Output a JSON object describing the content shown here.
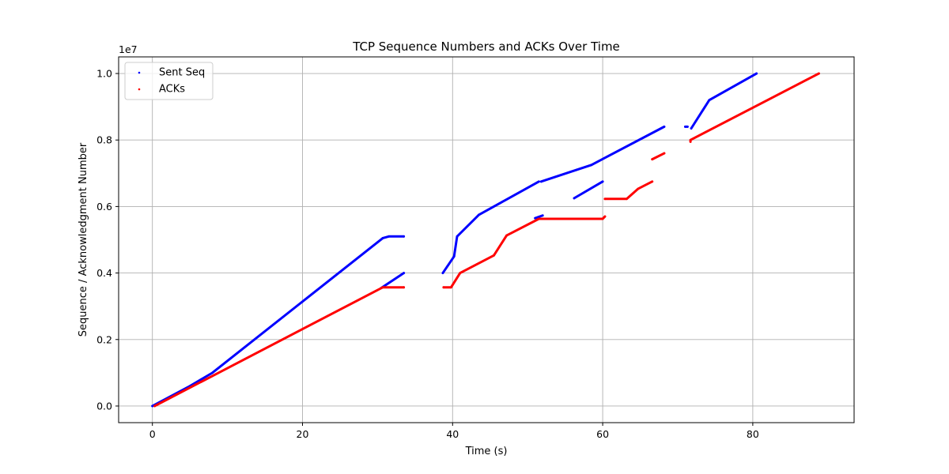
{
  "chart_data": {
    "type": "scatter",
    "title": "TCP Sequence Numbers and ACKs Over Time",
    "xlabel": "Time (s)",
    "ylabel": "Sequence / Acknowledgment Number",
    "offset_text": "1e7",
    "xlim": [
      -4.5,
      93.5
    ],
    "ylim": [
      -0.05,
      1.05
    ],
    "x_ticks": [
      0,
      20,
      40,
      60,
      80
    ],
    "y_ticks": [
      0.0,
      0.2,
      0.4,
      0.6,
      0.8,
      1.0
    ],
    "x_tick_labels": [
      "0",
      "20",
      "40",
      "60",
      "80"
    ],
    "y_tick_labels": [
      "0.0",
      "0.2",
      "0.4",
      "0.6",
      "0.8",
      "1.0"
    ],
    "grid": true,
    "legend_position": "top-left",
    "series": [
      {
        "name": "Sent Seq",
        "color": "#0000ff",
        "segments": [
          [
            [
              0,
              0.0
            ],
            [
              5,
              0.06
            ],
            [
              8,
              0.1
            ],
            [
              30.7,
              0.505
            ],
            [
              31.5,
              0.51
            ],
            [
              33.5,
              0.51
            ]
          ],
          [
            [
              30.5,
              0.355
            ],
            [
              33.5,
              0.4
            ]
          ],
          [
            [
              38.7,
              0.4
            ],
            [
              40.2,
              0.45
            ],
            [
              40.6,
              0.51
            ],
            [
              43.5,
              0.575
            ],
            [
              51.5,
              0.675
            ]
          ],
          [
            [
              51.0,
              0.565
            ],
            [
              52.0,
              0.573
            ]
          ],
          [
            [
              51.8,
              0.675
            ],
            [
              56.5,
              0.71
            ],
            [
              58.5,
              0.725
            ],
            [
              68.2,
              0.84
            ]
          ],
          [
            [
              56.2,
              0.625
            ],
            [
              60.0,
              0.675
            ]
          ],
          [
            [
              71.0,
              0.84
            ],
            [
              71.3,
              0.84
            ]
          ],
          [
            [
              71.8,
              0.835
            ],
            [
              74.2,
              0.92
            ],
            [
              80.5,
              1.0
            ]
          ]
        ]
      },
      {
        "name": "ACKs",
        "color": "#ff0000",
        "segments": [
          [
            [
              0.3,
              0.0
            ],
            [
              30.7,
              0.357
            ],
            [
              33.5,
              0.357
            ]
          ],
          [
            [
              38.8,
              0.357
            ],
            [
              39.8,
              0.357
            ],
            [
              41.0,
              0.4
            ],
            [
              45.5,
              0.453
            ],
            [
              47.2,
              0.513
            ],
            [
              51.5,
              0.563
            ],
            [
              60.0,
              0.563
            ],
            [
              60.3,
              0.57
            ]
          ],
          [
            [
              60.3,
              0.623
            ],
            [
              63.2,
              0.623
            ],
            [
              64.7,
              0.653
            ],
            [
              66.6,
              0.675
            ]
          ],
          [
            [
              66.6,
              0.742
            ],
            [
              68.2,
              0.76
            ]
          ],
          [
            [
              71.7,
              0.795
            ],
            [
              71.7,
              0.8
            ],
            [
              88.8,
              1.0
            ]
          ]
        ]
      }
    ]
  }
}
